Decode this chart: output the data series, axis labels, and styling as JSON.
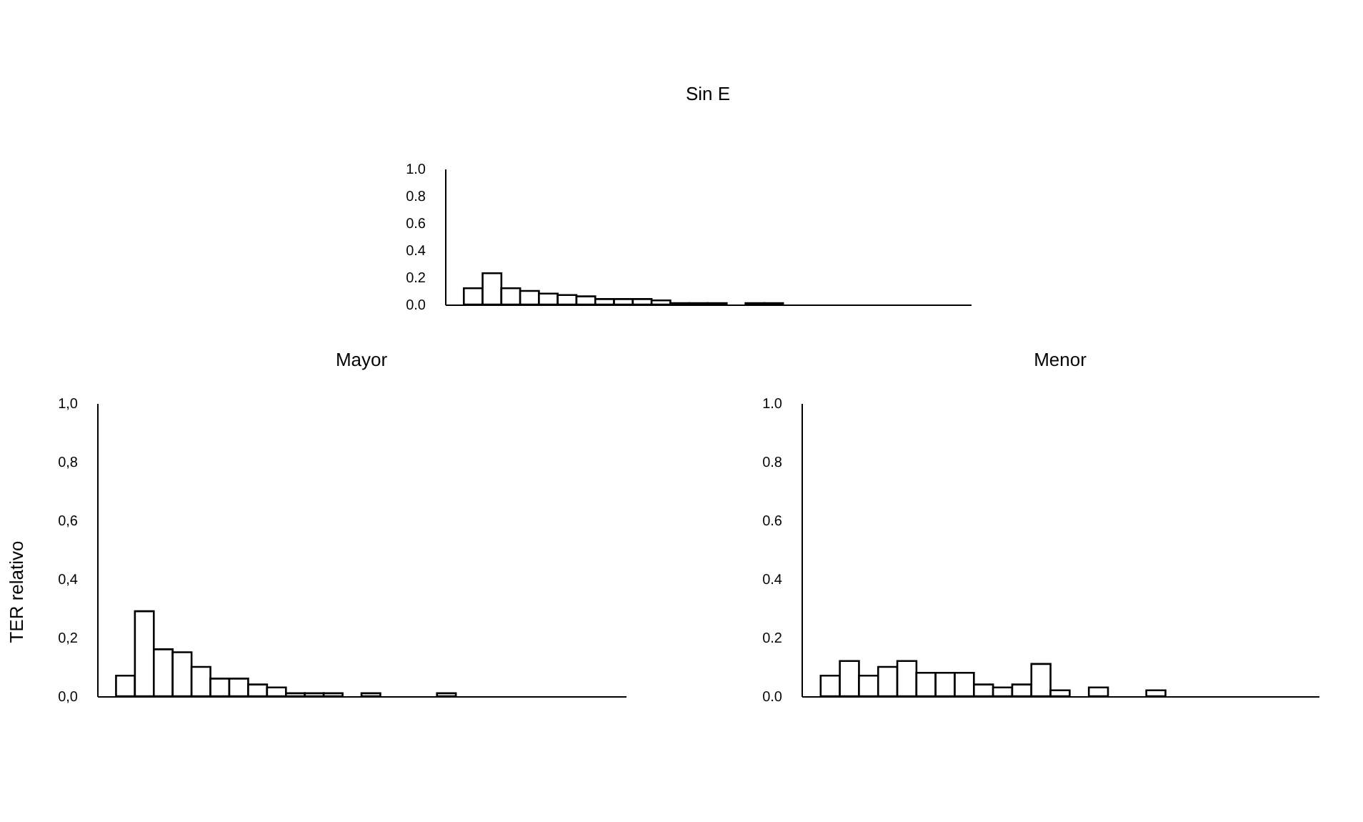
{
  "chart_data": [
    {
      "type": "bar",
      "title": "Sin E",
      "categories": [
        null,
        null,
        null,
        null,
        null,
        null,
        null,
        null,
        null,
        null,
        null,
        null,
        null,
        null,
        null,
        null,
        null,
        null,
        null,
        null,
        null,
        null,
        null,
        null,
        null,
        null,
        null,
        null
      ],
      "values": [
        0,
        0.12,
        0.23,
        0.12,
        0.1,
        0.08,
        0.07,
        0.06,
        0.04,
        0.04,
        0.04,
        0.03,
        0.01,
        0.01,
        0.01,
        0,
        0.01,
        0.01,
        0,
        0,
        0,
        0,
        0,
        0,
        0,
        0,
        0,
        0
      ],
      "color": "#ffffff",
      "ylim": [
        0,
        1
      ],
      "yticks": [
        {
          "value": 0,
          "label": "0.0"
        },
        {
          "value": 0.2,
          "label": "0.2"
        },
        {
          "value": 0.4,
          "label": "0.4"
        },
        {
          "value": 0.6,
          "label": "0.6"
        },
        {
          "value": 0.8,
          "label": "0.8"
        },
        {
          "value": 1,
          "label": "1.0"
        }
      ],
      "tick_labels": "y"
    },
    {
      "type": "bar",
      "title": "Mayor",
      "ylabel": "TER relativo",
      "categories": [
        null,
        null,
        null,
        null,
        null,
        null,
        null,
        null,
        null,
        null,
        null,
        null,
        null,
        null,
        null,
        null,
        null,
        null,
        null,
        null,
        null,
        null,
        null,
        null,
        null,
        null,
        null,
        null
      ],
      "values": [
        0,
        0.07,
        0.29,
        0.16,
        0.15,
        0.1,
        0.06,
        0.06,
        0.04,
        0.03,
        0.01,
        0.01,
        0.01,
        0,
        0.01,
        0,
        0,
        0,
        0.01,
        0,
        0,
        0,
        0,
        0,
        0,
        0,
        0,
        0
      ],
      "color": "#ffffff",
      "ylim": [
        0,
        1
      ],
      "yticks": [
        {
          "value": 0,
          "label": "0,0"
        },
        {
          "value": 0.2,
          "label": "0,2"
        },
        {
          "value": 0.4,
          "label": "0,4"
        },
        {
          "value": 0.6,
          "label": "0,6"
        },
        {
          "value": 0.8,
          "label": "0,8"
        },
        {
          "value": 1,
          "label": "1,0"
        }
      ],
      "tick_labels": "y"
    },
    {
      "type": "bar",
      "title": "Menor",
      "categories": [
        null,
        null,
        null,
        null,
        null,
        null,
        null,
        null,
        null,
        null,
        null,
        null,
        null,
        null,
        null,
        null,
        null,
        null,
        null,
        null,
        null,
        null,
        null,
        null,
        null,
        null,
        null
      ],
      "values": [
        0,
        0.07,
        0.12,
        0.07,
        0.1,
        0.12,
        0.08,
        0.08,
        0.08,
        0.04,
        0.03,
        0.04,
        0.11,
        0.02,
        0,
        0.03,
        0,
        0,
        0.02,
        0,
        0,
        0,
        0,
        0,
        0,
        0,
        0
      ],
      "color": "#ffffff",
      "ylim": [
        0,
        1
      ],
      "yticks": [
        {
          "value": 0,
          "label": "0.0"
        },
        {
          "value": 0.2,
          "label": "0.2"
        },
        {
          "value": 0.4,
          "label": "0.4"
        },
        {
          "value": 0.6,
          "label": "0.6"
        },
        {
          "value": 0.8,
          "label": "0.8"
        },
        {
          "value": 1,
          "label": "1.0"
        }
      ],
      "tick_labels": "y"
    }
  ]
}
